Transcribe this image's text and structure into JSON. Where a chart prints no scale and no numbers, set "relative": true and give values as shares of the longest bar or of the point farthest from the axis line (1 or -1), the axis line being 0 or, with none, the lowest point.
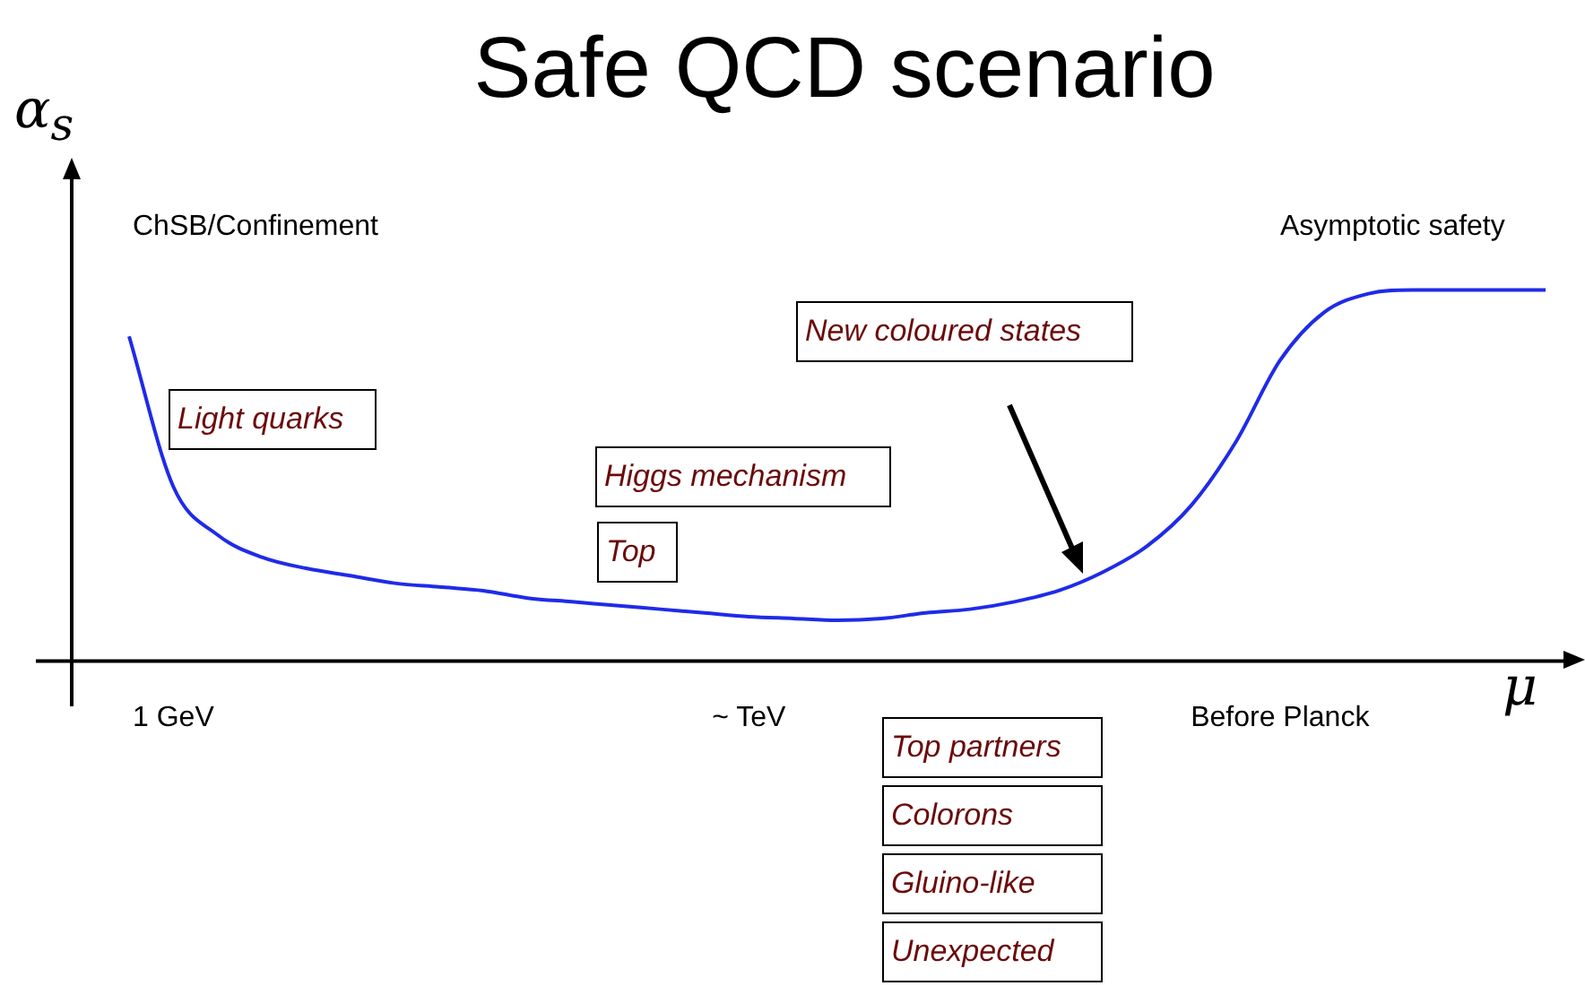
{
  "chart_data": {
    "type": "line",
    "title": "Safe QCD scenario",
    "xlabel": "μ",
    "ylabel": "α$_{s}$",
    "relative": true,
    "grid": false,
    "legend": false,
    "marker": "none",
    "line_style": "solid",
    "categories": [
      null,
      "1 GeV",
      null,
      null,
      null,
      null,
      null,
      null,
      null,
      null,
      null,
      null,
      null,
      null,
      "~ TeV",
      null,
      null,
      null,
      null,
      null,
      null,
      null,
      null,
      null,
      null,
      null,
      "Before Planck",
      null,
      null,
      null,
      null,
      null,
      null
    ],
    "series": [
      {
        "color": "#1f2be8",
        "values": [
          0.875,
          0.47,
          0.34,
          0.28,
          0.25,
          0.23,
          0.21,
          0.2,
          0.19,
          0.17,
          0.16,
          0.15,
          0.14,
          0.13,
          0.12,
          0.115,
          0.11,
          0.115,
          0.13,
          0.14,
          0.16,
          0.19,
          0.24,
          0.31,
          0.42,
          0.59,
          0.81,
          0.94,
          0.99,
          1,
          1,
          1,
          1
        ]
      }
    ],
    "annotations": [
      "ChSB/Confinement",
      "Asymptotic safety",
      "Light quarks",
      "Higgs mechanism",
      "Top",
      "New coloured states",
      "Top partners",
      "Colorons",
      "Gluino-like",
      "Unexpected"
    ]
  }
}
